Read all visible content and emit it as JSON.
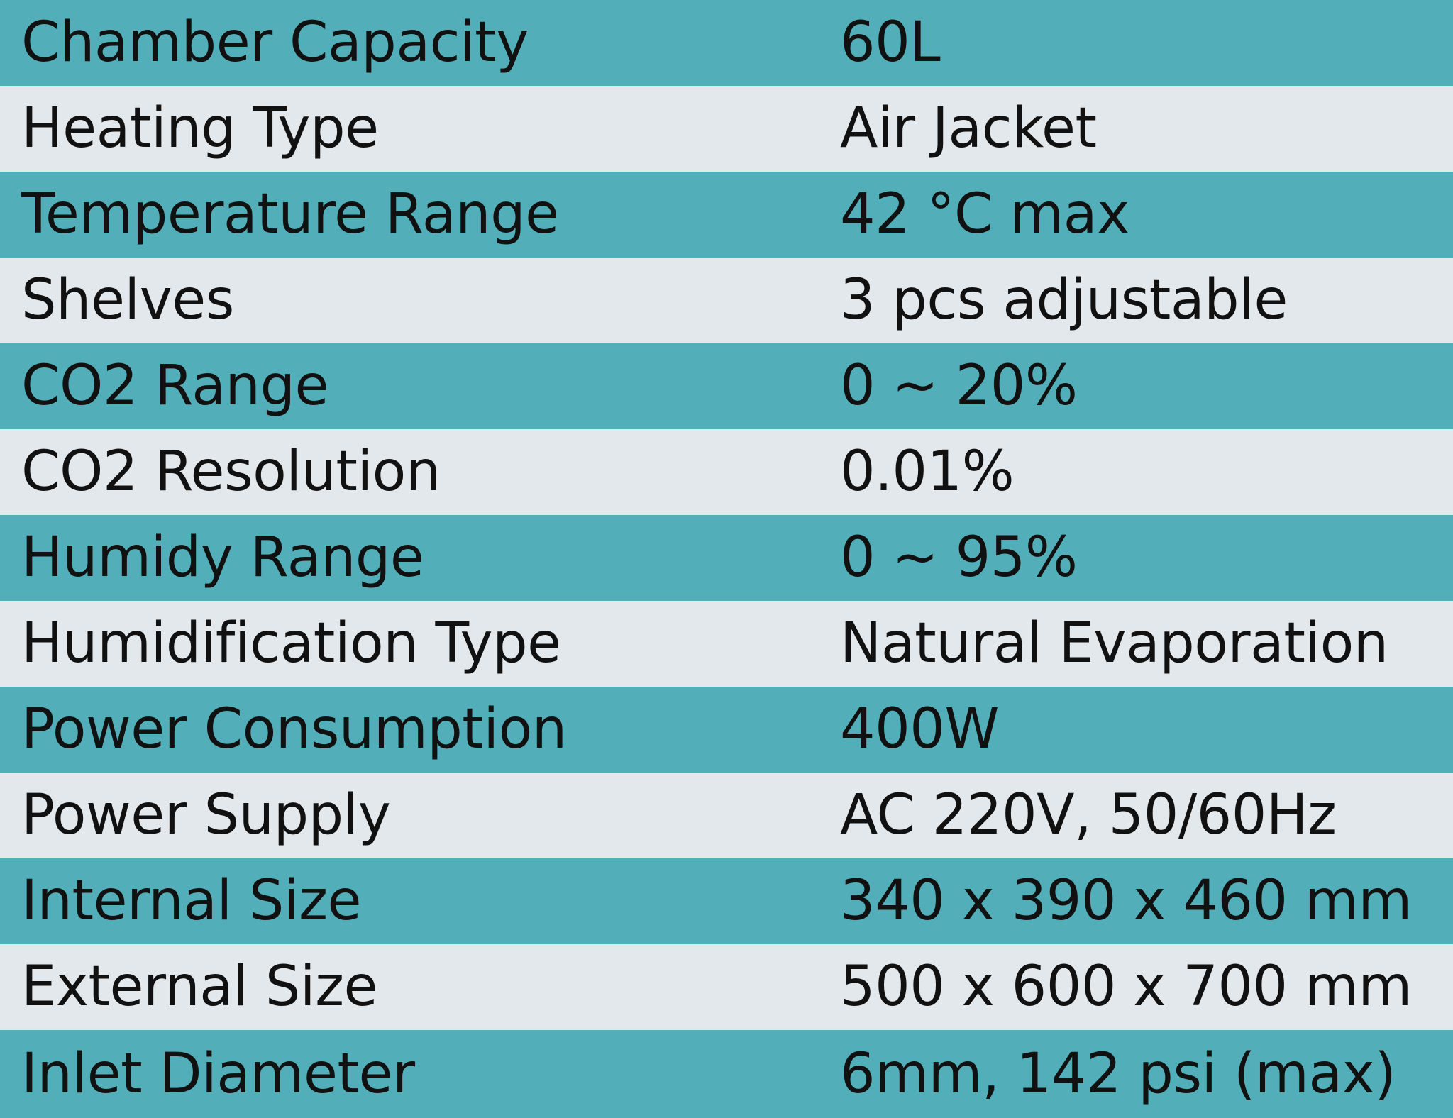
{
  "colors": {
    "teal_band": "#52aeb8",
    "light_band": "#e3e8ec",
    "text": "#111111"
  },
  "specs": [
    {
      "label": "Chamber Capacity",
      "value": "60L"
    },
    {
      "label": "Heating Type",
      "value": "Air Jacket"
    },
    {
      "label": "Temperature Range",
      "value": "42 °C max"
    },
    {
      "label": "Shelves",
      "value": "3 pcs adjustable"
    },
    {
      "label": "CO2 Range",
      "value": "0 ~ 20%"
    },
    {
      "label": "CO2 Resolution",
      "value": "0.01%"
    },
    {
      "label": "Humidy Range",
      "value": "0 ~ 95%"
    },
    {
      "label": "Humidification Type",
      "value": "Natural Evaporation"
    },
    {
      "label": "Power Consumption",
      "value": "400W"
    },
    {
      "label": "Power Supply",
      "value": "AC 220V, 50/60Hz"
    },
    {
      "label": "Internal Size",
      "value": "340 x 390 x 460 mm"
    },
    {
      "label": "External Size",
      "value": "500 x 600 x 700 mm"
    },
    {
      "label": "Inlet Diameter",
      "value": "6mm, 142 psi (max)"
    }
  ]
}
